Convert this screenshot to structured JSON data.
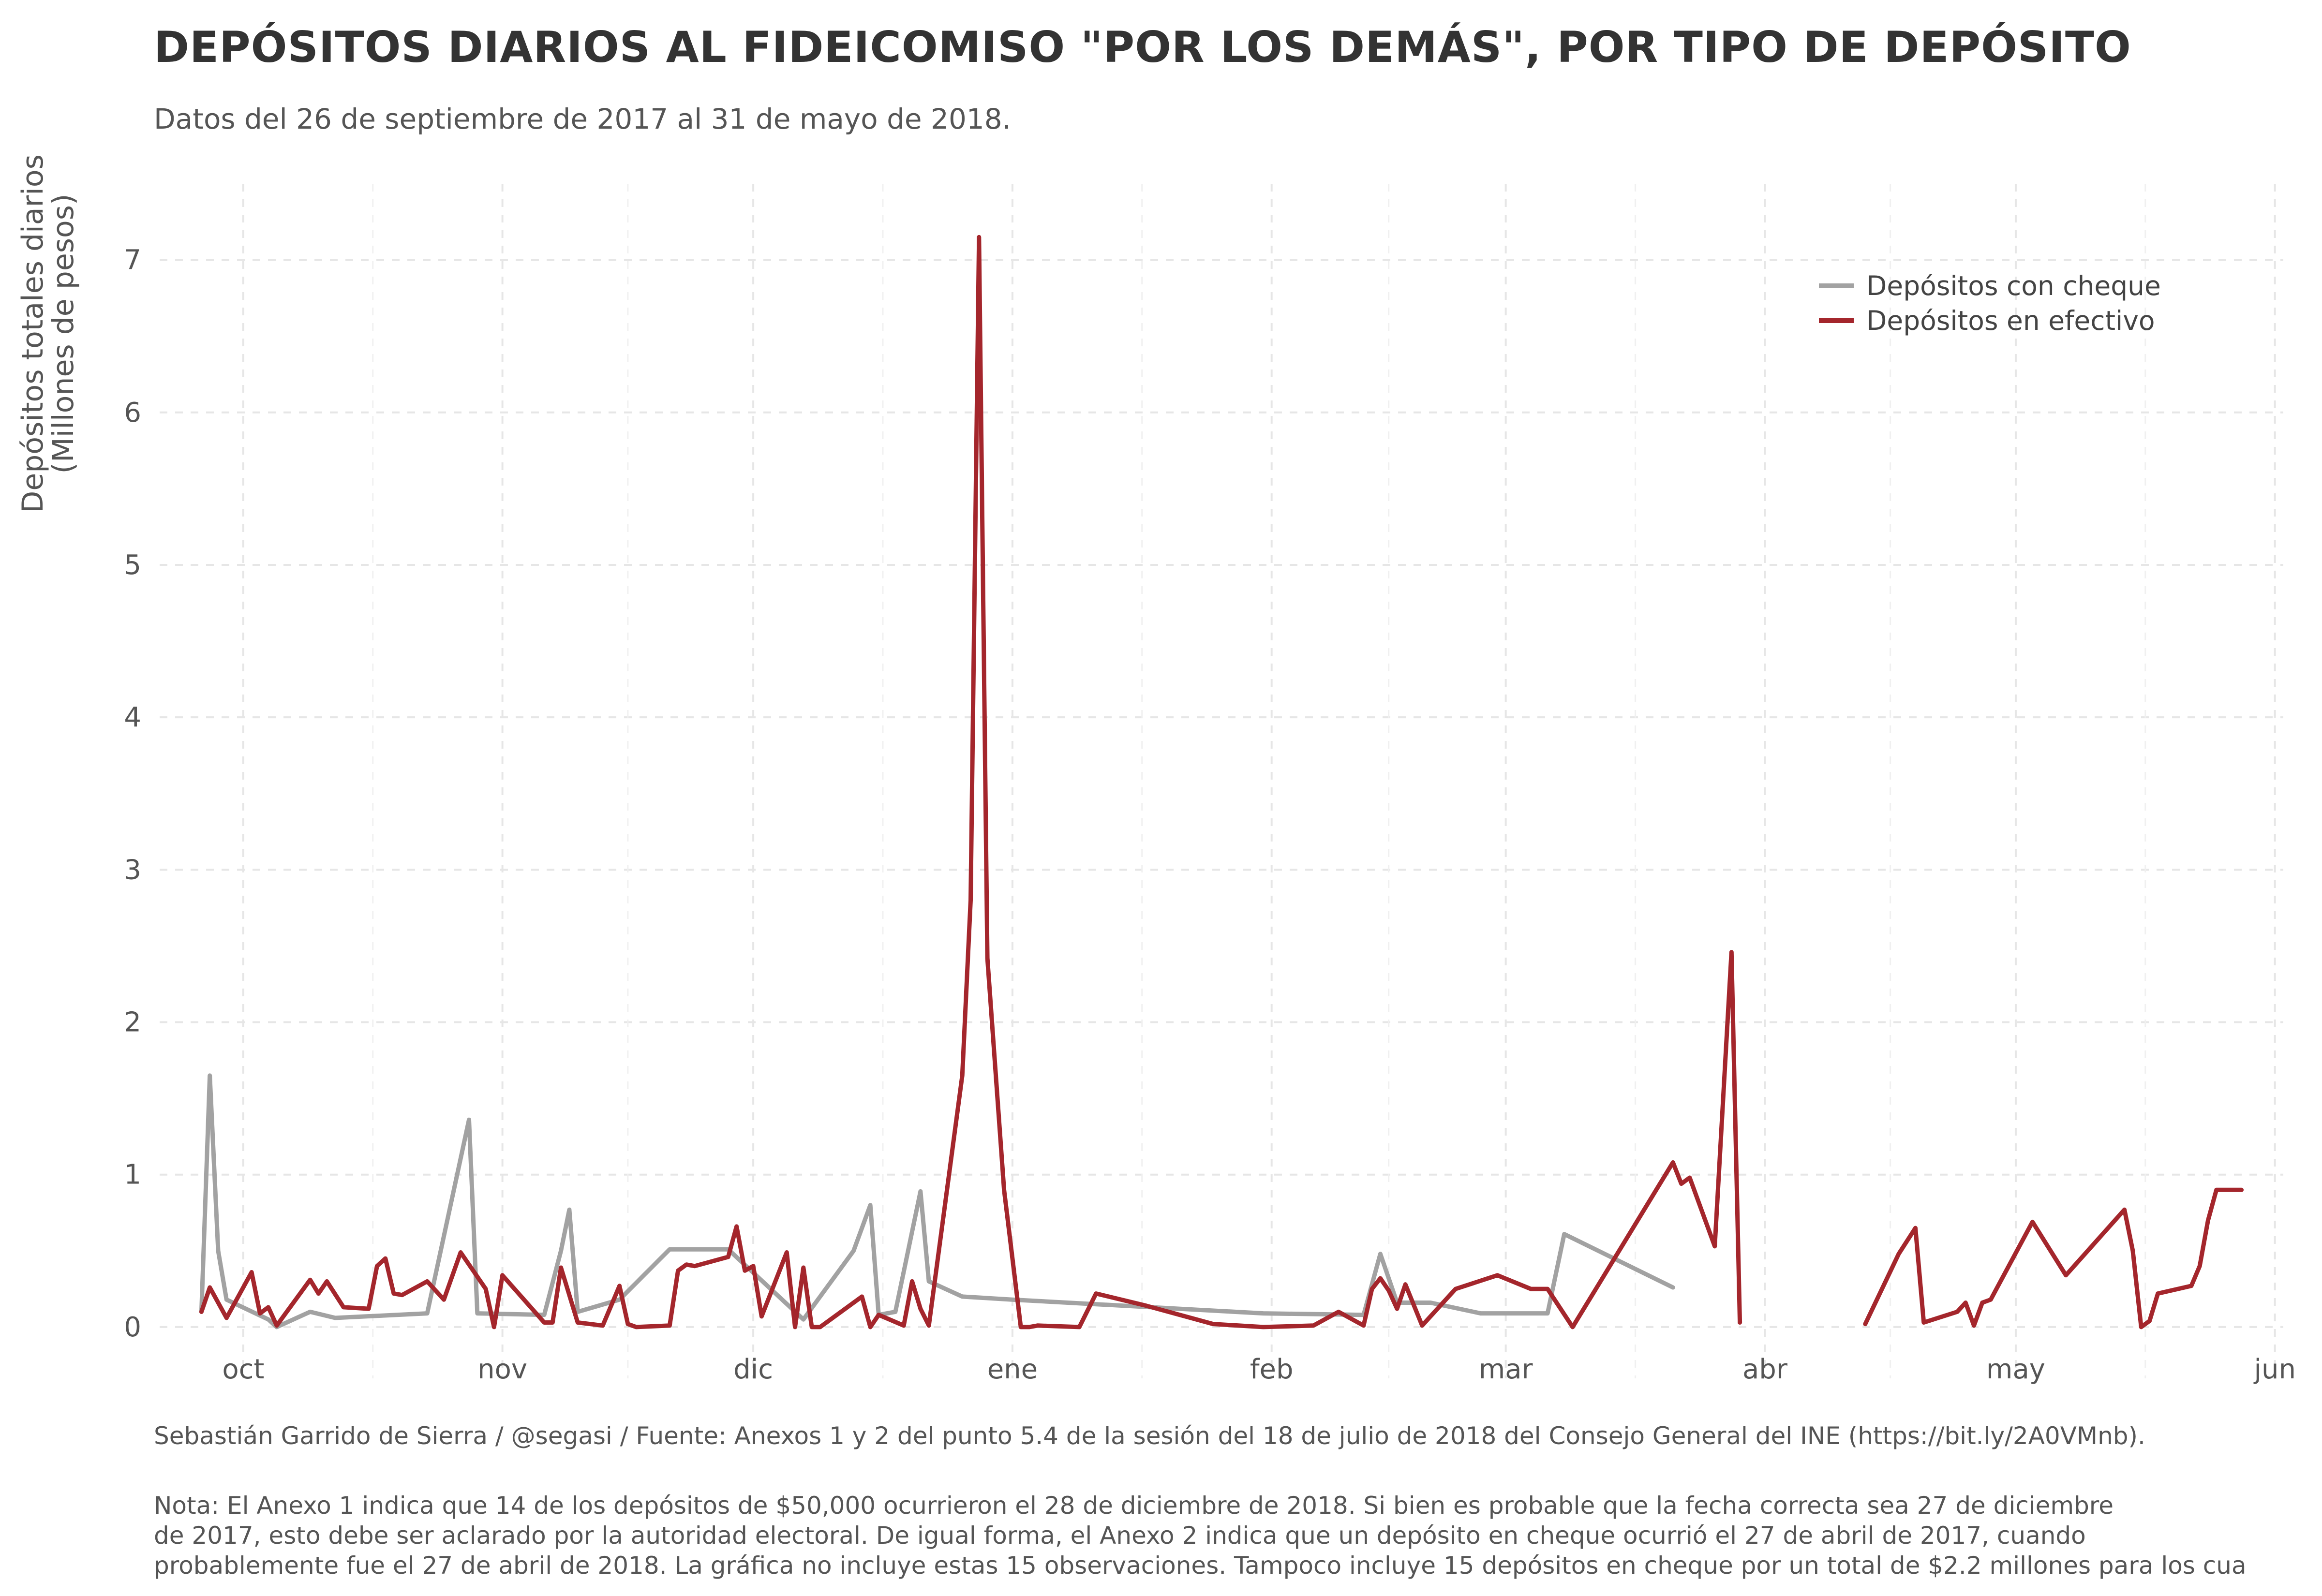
{
  "chart_data": {
    "type": "line",
    "title": "DEPÓSITOS DIARIOS AL FIDEICOMISO \"POR LOS DEMÁS\", POR TIPO DE DEPÓSITO",
    "subtitle": "Datos del 26 de septiembre de 2017 al 31 de mayo de 2018.",
    "ylabel_lines": [
      "Depósitos totales diarios",
      "(Millones de pesos)"
    ],
    "xlabel": "",
    "x_ticks": [
      {
        "label": "oct",
        "date": "2017-10-01"
      },
      {
        "label": "nov",
        "date": "2017-11-01"
      },
      {
        "label": "dic",
        "date": "2017-12-01"
      },
      {
        "label": "ene",
        "date": "2018-01-01"
      },
      {
        "label": "feb",
        "date": "2018-02-01"
      },
      {
        "label": "mar",
        "date": "2018-03-01"
      },
      {
        "label": "abr",
        "date": "2018-04-01"
      },
      {
        "label": "may",
        "date": "2018-05-01"
      },
      {
        "label": "jun",
        "date": "2018-06-01"
      }
    ],
    "y_ticks": [
      0,
      1,
      2,
      3,
      4,
      5,
      6,
      7
    ],
    "xlim": [
      "2017-09-21",
      "2018-06-02"
    ],
    "ylim": [
      -0.4,
      7.5
    ],
    "grid": true,
    "legend_position": "top-right",
    "series": [
      {
        "name": "Depósitos con cheque",
        "color": "#a2a2a2",
        "segments": [
          [
            {
              "x": "2017-09-26",
              "y": 0.1
            },
            {
              "x": "2017-09-27",
              "y": 1.65
            },
            {
              "x": "2017-09-28",
              "y": 0.5
            },
            {
              "x": "2017-09-29",
              "y": 0.18
            },
            {
              "x": "2017-10-04",
              "y": 0.05
            },
            {
              "x": "2017-10-05",
              "y": 0.0
            },
            {
              "x": "2017-10-09",
              "y": 0.1
            },
            {
              "x": "2017-10-12",
              "y": 0.06
            },
            {
              "x": "2017-10-23",
              "y": 0.09
            },
            {
              "x": "2017-10-28",
              "y": 1.36
            },
            {
              "x": "2017-10-29",
              "y": 0.09
            },
            {
              "x": "2017-11-06",
              "y": 0.08
            },
            {
              "x": "2017-11-08",
              "y": 0.5
            },
            {
              "x": "2017-11-09",
              "y": 0.77
            },
            {
              "x": "2017-11-10",
              "y": 0.1
            },
            {
              "x": "2017-11-15",
              "y": 0.18
            },
            {
              "x": "2017-11-21",
              "y": 0.51
            },
            {
              "x": "2017-11-28",
              "y": 0.51
            },
            {
              "x": "2017-12-07",
              "y": 0.05
            },
            {
              "x": "2017-12-13",
              "y": 0.5
            },
            {
              "x": "2017-12-15",
              "y": 0.8
            },
            {
              "x": "2017-12-16",
              "y": 0.08
            },
            {
              "x": "2017-12-18",
              "y": 0.1
            },
            {
              "x": "2017-12-21",
              "y": 0.89
            },
            {
              "x": "2017-12-22",
              "y": 0.3
            },
            {
              "x": "2017-12-26",
              "y": 0.2
            },
            {
              "x": "2018-01-01",
              "y": 0.18
            },
            {
              "x": "2018-01-31",
              "y": 0.09
            },
            {
              "x": "2018-02-12",
              "y": 0.08
            },
            {
              "x": "2018-02-14",
              "y": 0.48
            },
            {
              "x": "2018-02-16",
              "y": 0.16
            },
            {
              "x": "2018-02-20",
              "y": 0.16
            },
            {
              "x": "2018-02-26",
              "y": 0.09
            },
            {
              "x": "2018-03-06",
              "y": 0.09
            },
            {
              "x": "2018-03-08",
              "y": 0.61
            },
            {
              "x": "2018-03-21",
              "y": 0.26
            }
          ]
        ]
      },
      {
        "name": "Depósitos en efectivo",
        "color": "#a4262c",
        "segments": [
          [
            {
              "x": "2017-09-26",
              "y": 0.1
            },
            {
              "x": "2017-09-27",
              "y": 0.26
            },
            {
              "x": "2017-09-29",
              "y": 0.06
            },
            {
              "x": "2017-10-02",
              "y": 0.36
            },
            {
              "x": "2017-10-03",
              "y": 0.09
            },
            {
              "x": "2017-10-04",
              "y": 0.13
            },
            {
              "x": "2017-10-05",
              "y": 0.01
            },
            {
              "x": "2017-10-09",
              "y": 0.31
            },
            {
              "x": "2017-10-10",
              "y": 0.22
            },
            {
              "x": "2017-10-11",
              "y": 0.3
            },
            {
              "x": "2017-10-13",
              "y": 0.13
            },
            {
              "x": "2017-10-16",
              "y": 0.12
            },
            {
              "x": "2017-10-17",
              "y": 0.4
            },
            {
              "x": "2017-10-18",
              "y": 0.45
            },
            {
              "x": "2017-10-19",
              "y": 0.22
            },
            {
              "x": "2017-10-20",
              "y": 0.21
            },
            {
              "x": "2017-10-23",
              "y": 0.3
            },
            {
              "x": "2017-10-25",
              "y": 0.18
            },
            {
              "x": "2017-10-27",
              "y": 0.49
            },
            {
              "x": "2017-10-30",
              "y": 0.25
            },
            {
              "x": "2017-10-31",
              "y": 0.0
            },
            {
              "x": "2017-11-01",
              "y": 0.34
            },
            {
              "x": "2017-11-06",
              "y": 0.03
            },
            {
              "x": "2017-11-07",
              "y": 0.03
            },
            {
              "x": "2017-11-08",
              "y": 0.39
            },
            {
              "x": "2017-11-10",
              "y": 0.03
            },
            {
              "x": "2017-11-13",
              "y": 0.01
            },
            {
              "x": "2017-11-15",
              "y": 0.27
            },
            {
              "x": "2017-11-16",
              "y": 0.02
            },
            {
              "x": "2017-11-17",
              "y": 0.0
            },
            {
              "x": "2017-11-21",
              "y": 0.01
            },
            {
              "x": "2017-11-22",
              "y": 0.37
            },
            {
              "x": "2017-11-23",
              "y": 0.41
            },
            {
              "x": "2017-11-24",
              "y": 0.4
            },
            {
              "x": "2017-11-28",
              "y": 0.46
            },
            {
              "x": "2017-11-29",
              "y": 0.66
            },
            {
              "x": "2017-11-30",
              "y": 0.37
            },
            {
              "x": "2017-12-01",
              "y": 0.4
            },
            {
              "x": "2017-12-02",
              "y": 0.07
            },
            {
              "x": "2017-12-05",
              "y": 0.49
            },
            {
              "x": "2017-12-06",
              "y": 0.0
            },
            {
              "x": "2017-12-07",
              "y": 0.39
            },
            {
              "x": "2017-12-08",
              "y": 0.0
            },
            {
              "x": "2017-12-09",
              "y": 0.0
            },
            {
              "x": "2017-12-14",
              "y": 0.2
            },
            {
              "x": "2017-12-15",
              "y": 0.0
            },
            {
              "x": "2017-12-16",
              "y": 0.08
            },
            {
              "x": "2017-12-19",
              "y": 0.01
            },
            {
              "x": "2017-12-20",
              "y": 0.3
            },
            {
              "x": "2017-12-21",
              "y": 0.12
            },
            {
              "x": "2017-12-22",
              "y": 0.01
            },
            {
              "x": "2017-12-26",
              "y": 1.65
            },
            {
              "x": "2017-12-27",
              "y": 2.8
            },
            {
              "x": "2017-12-28",
              "y": 7.15
            },
            {
              "x": "2017-12-29",
              "y": 2.42
            },
            {
              "x": "2017-12-31",
              "y": 0.9
            },
            {
              "x": "2018-01-02",
              "y": 0.0
            },
            {
              "x": "2018-01-03",
              "y": 0.0
            },
            {
              "x": "2018-01-04",
              "y": 0.01
            },
            {
              "x": "2018-01-09",
              "y": 0.0
            },
            {
              "x": "2018-01-11",
              "y": 0.22
            },
            {
              "x": "2018-01-17",
              "y": 0.14
            },
            {
              "x": "2018-01-25",
              "y": 0.02
            },
            {
              "x": "2018-01-31",
              "y": 0.0
            },
            {
              "x": "2018-02-06",
              "y": 0.01
            },
            {
              "x": "2018-02-09",
              "y": 0.1
            },
            {
              "x": "2018-02-12",
              "y": 0.01
            },
            {
              "x": "2018-02-13",
              "y": 0.25
            },
            {
              "x": "2018-02-14",
              "y": 0.32
            },
            {
              "x": "2018-02-15",
              "y": 0.24
            },
            {
              "x": "2018-02-16",
              "y": 0.12
            },
            {
              "x": "2018-02-17",
              "y": 0.28
            },
            {
              "x": "2018-02-19",
              "y": 0.01
            },
            {
              "x": "2018-02-23",
              "y": 0.25
            },
            {
              "x": "2018-02-28",
              "y": 0.34
            },
            {
              "x": "2018-03-04",
              "y": 0.25
            },
            {
              "x": "2018-03-06",
              "y": 0.25
            },
            {
              "x": "2018-03-09",
              "y": 0.0
            },
            {
              "x": "2018-03-12",
              "y": 0.27
            },
            {
              "x": "2018-03-21",
              "y": 1.08
            },
            {
              "x": "2018-03-22",
              "y": 0.94
            },
            {
              "x": "2018-03-23",
              "y": 0.98
            },
            {
              "x": "2018-03-26",
              "y": 0.53
            },
            {
              "x": "2018-03-28",
              "y": 2.46
            },
            {
              "x": "2018-03-29",
              "y": 0.03
            }
          ],
          [
            {
              "x": "2018-04-13",
              "y": 0.02
            },
            {
              "x": "2018-04-17",
              "y": 0.48
            },
            {
              "x": "2018-04-19",
              "y": 0.65
            },
            {
              "x": "2018-04-20",
              "y": 0.03
            },
            {
              "x": "2018-04-24",
              "y": 0.1
            },
            {
              "x": "2018-04-25",
              "y": 0.16
            },
            {
              "x": "2018-04-26",
              "y": 0.01
            },
            {
              "x": "2018-04-27",
              "y": 0.16
            },
            {
              "x": "2018-04-28",
              "y": 0.18
            },
            {
              "x": "2018-05-03",
              "y": 0.69
            },
            {
              "x": "2018-05-07",
              "y": 0.34
            },
            {
              "x": "2018-05-14",
              "y": 0.77
            },
            {
              "x": "2018-05-15",
              "y": 0.5
            },
            {
              "x": "2018-05-16",
              "y": 0.0
            },
            {
              "x": "2018-05-17",
              "y": 0.04
            },
            {
              "x": "2018-05-18",
              "y": 0.22
            },
            {
              "x": "2018-05-22",
              "y": 0.27
            },
            {
              "x": "2018-05-23",
              "y": 0.4
            },
            {
              "x": "2018-05-24",
              "y": 0.7
            },
            {
              "x": "2018-05-25",
              "y": 0.9
            },
            {
              "x": "2018-05-28",
              "y": 0.9
            }
          ]
        ]
      }
    ]
  },
  "caption": "Sebastián Garrido de Sierra / @segasi / Fuente: Anexos 1 y 2 del punto 5.4 de la sesión del 18 de julio de 2018 del Consejo General del INE (https://bit.ly/2A0VMnb).",
  "note_lines": [
    "Nota: El Anexo 1 indica que 14 de los depósitos de $50,000 ocurrieron el 28 de diciembre de 2018. Si bien es probable que la fecha correcta sea 27 de diciembre",
    "de 2017, esto debe ser aclarado por la autoridad electoral. De igual forma, el Anexo 2 indica que un depósito en cheque ocurrió el 27 de abril de 2017, cuando",
    "probablemente fue el 27 de abril de 2018. La gráfica no incluye estas 15 observaciones. Tampoco incluye 15 depósitos en cheque por un total de $2.2 millones para los cua"
  ]
}
